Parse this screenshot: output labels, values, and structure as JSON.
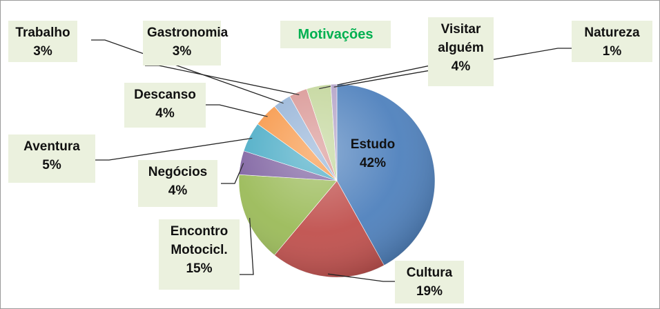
{
  "chart_data": {
    "type": "pie",
    "title": "Motivações",
    "categories": [
      "Estudo",
      "Cultura",
      "Encontro Motocicl.",
      "Negócios",
      "Aventura",
      "Descanso",
      "Trabalho",
      "Gastronomia",
      "Visitar alguém",
      "Natureza"
    ],
    "values": [
      42,
      19,
      15,
      4,
      5,
      4,
      3,
      3,
      4,
      1
    ],
    "value_labels": [
      "42%",
      "19%",
      "15%",
      "4%",
      "5%",
      "4%",
      "3%",
      "3%",
      "4%",
      "1%"
    ],
    "colors": [
      "#4f81bd",
      "#c0504d",
      "#9bbb59",
      "#8064a2",
      "#4bacc6",
      "#f79646",
      "#95b3d7",
      "#d99694",
      "#c3d69b",
      "#b3a2c7"
    ]
  }
}
